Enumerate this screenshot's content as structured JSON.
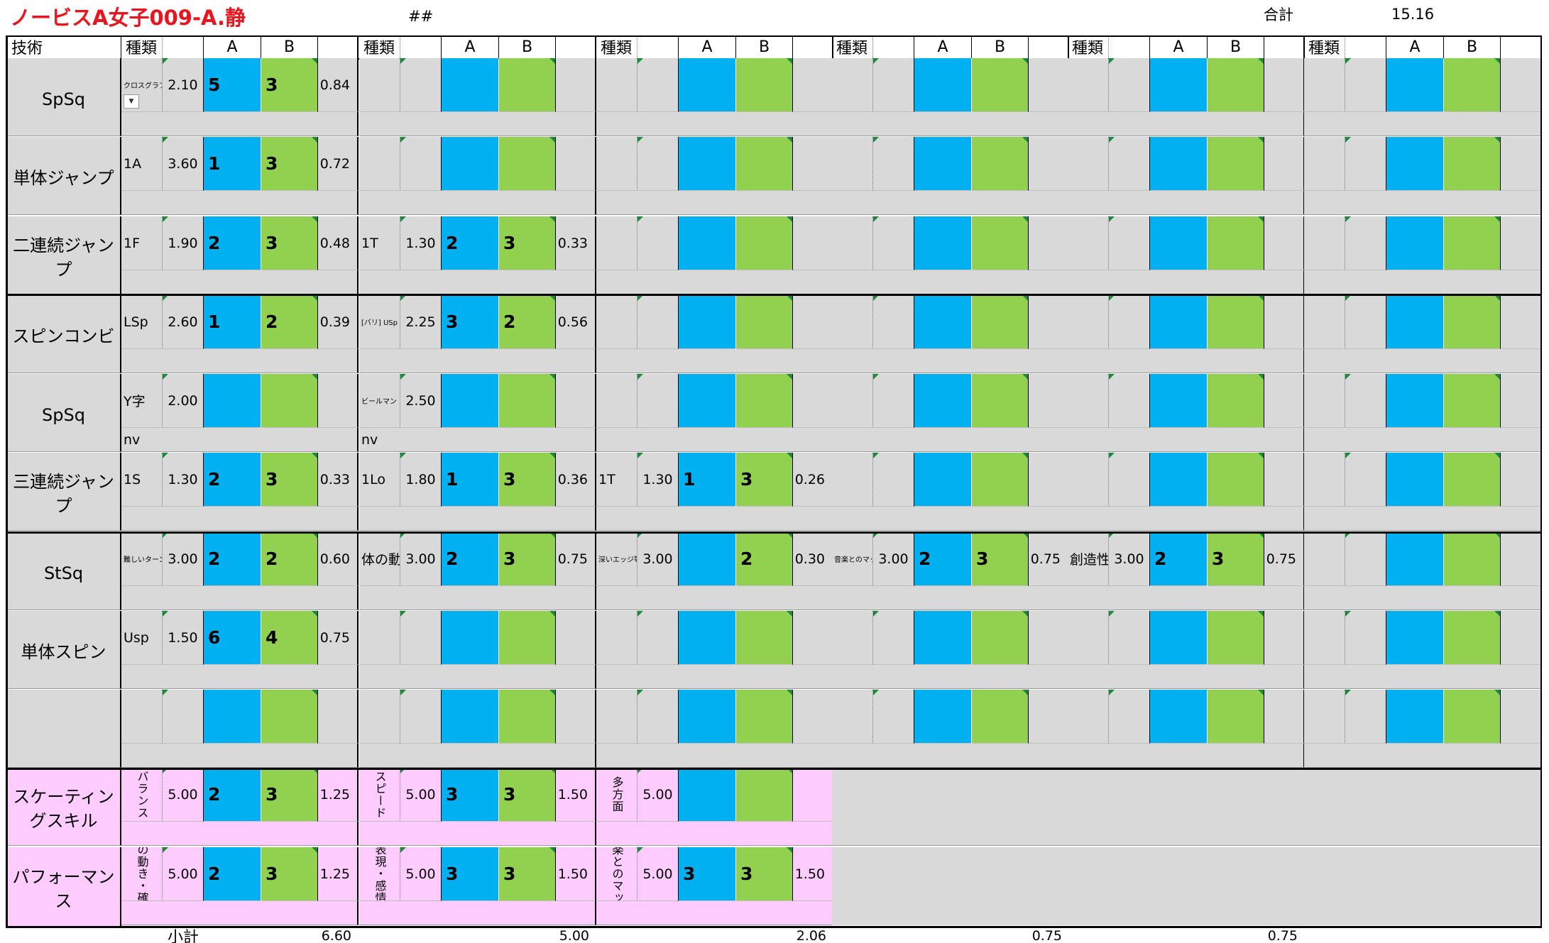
{
  "title": "ノービスA女子009-A.静",
  "top_mark": "##",
  "total_label": "合計",
  "total_value": "15.16",
  "header": {
    "gijutsu": "技術",
    "kind": "種類",
    "a": "A",
    "b": "B"
  },
  "colors": {
    "a_cell": "#00b0f0",
    "b_cell": "#92d050",
    "gray": "#d9d9d9",
    "pink": "#ffccff",
    "title_red": "#e8141e"
  },
  "skills": [
    "SpSq",
    "単体ジャンプ",
    "二連続ジャンプ",
    "スピンコンビ",
    "SpSq",
    "三連続ジャンプ",
    "StSq",
    "単体スピン",
    "",
    "スケーティングスキル",
    "パフォーマンス"
  ],
  "groups": [
    [
      {
        "kind": "クロスグラブ",
        "base": "2.10",
        "a": "5",
        "b": "3",
        "res": "0.84",
        "note": ""
      },
      {
        "kind": "1A",
        "base": "3.60",
        "a": "1",
        "b": "3",
        "res": "0.72",
        "note": ""
      },
      {
        "kind": "1F",
        "base": "1.90",
        "a": "2",
        "b": "3",
        "res": "0.48",
        "note": ""
      },
      {
        "kind": "LSp",
        "base": "2.60",
        "a": "1",
        "b": "2",
        "res": "0.39",
        "note": ""
      },
      {
        "kind": "Y字",
        "base": "2.00",
        "a": "",
        "b": "",
        "res": "",
        "note": "nv"
      },
      {
        "kind": "1S",
        "base": "1.30",
        "a": "2",
        "b": "3",
        "res": "0.33",
        "note": ""
      },
      {
        "kind": "難しいターン",
        "base": "3.00",
        "a": "2",
        "b": "2",
        "res": "0.60",
        "note": ""
      },
      {
        "kind": "Usp",
        "base": "1.50",
        "a": "6",
        "b": "4",
        "res": "0.75",
        "note": ""
      },
      {
        "kind": "",
        "base": "",
        "a": "",
        "b": "",
        "res": "",
        "note": ""
      },
      {
        "kind": "バランス",
        "base": "5.00",
        "a": "2",
        "b": "3",
        "res": "1.25",
        "note": ""
      },
      {
        "kind": "体の動き・確明",
        "base": "5.00",
        "a": "2",
        "b": "3",
        "res": "1.25",
        "note": ""
      }
    ],
    [
      {
        "kind": "",
        "base": "",
        "a": "",
        "b": "",
        "res": "",
        "note": ""
      },
      {
        "kind": "",
        "base": "",
        "a": "",
        "b": "",
        "res": "",
        "note": ""
      },
      {
        "kind": "1T",
        "base": "1.30",
        "a": "2",
        "b": "3",
        "res": "0.33",
        "note": ""
      },
      {
        "kind": "[バリ] USp",
        "base": "2.25",
        "a": "3",
        "b": "2",
        "res": "0.56",
        "note": ""
      },
      {
        "kind": "ビールマン",
        "base": "2.50",
        "a": "",
        "b": "",
        "res": "",
        "note": "nv"
      },
      {
        "kind": "1Lo",
        "base": "1.80",
        "a": "1",
        "b": "3",
        "res": "0.36",
        "note": ""
      },
      {
        "kind": "体の動き",
        "base": "3.00",
        "a": "2",
        "b": "3",
        "res": "0.75",
        "note": ""
      },
      {
        "kind": "",
        "base": "",
        "a": "",
        "b": "",
        "res": "",
        "note": ""
      },
      {
        "kind": "",
        "base": "",
        "a": "",
        "b": "",
        "res": "",
        "note": ""
      },
      {
        "kind": "スピード",
        "base": "5.00",
        "a": "3",
        "b": "3",
        "res": "1.50",
        "note": ""
      },
      {
        "kind": "表現・感情",
        "base": "5.00",
        "a": "3",
        "b": "3",
        "res": "1.50",
        "note": ""
      }
    ],
    [
      {
        "kind": "",
        "base": "",
        "a": "",
        "b": "",
        "res": "",
        "note": ""
      },
      {
        "kind": "",
        "base": "",
        "a": "",
        "b": "",
        "res": "",
        "note": ""
      },
      {
        "kind": "",
        "base": "",
        "a": "",
        "b": "",
        "res": "",
        "note": ""
      },
      {
        "kind": "",
        "base": "",
        "a": "",
        "b": "",
        "res": "",
        "note": ""
      },
      {
        "kind": "",
        "base": "",
        "a": "",
        "b": "",
        "res": "",
        "note": ""
      },
      {
        "kind": "1T",
        "base": "1.30",
        "a": "1",
        "b": "3",
        "res": "0.26",
        "note": ""
      },
      {
        "kind": "深いエッジ等",
        "base": "3.00",
        "a": "",
        "b": "2",
        "res": "0.30",
        "note": ""
      },
      {
        "kind": "",
        "base": "",
        "a": "",
        "b": "",
        "res": "",
        "note": ""
      },
      {
        "kind": "",
        "base": "",
        "a": "",
        "b": "",
        "res": "",
        "note": ""
      },
      {
        "kind": "多方面",
        "base": "5.00",
        "a": "",
        "b": "",
        "res": "",
        "note": ""
      },
      {
        "kind": "音楽とのマッチ",
        "base": "5.00",
        "a": "3",
        "b": "3",
        "res": "1.50",
        "note": ""
      }
    ],
    [
      {
        "kind": "",
        "base": "",
        "a": "",
        "b": "",
        "res": "",
        "note": ""
      },
      {
        "kind": "",
        "base": "",
        "a": "",
        "b": "",
        "res": "",
        "note": ""
      },
      {
        "kind": "",
        "base": "",
        "a": "",
        "b": "",
        "res": "",
        "note": ""
      },
      {
        "kind": "",
        "base": "",
        "a": "",
        "b": "",
        "res": "",
        "note": ""
      },
      {
        "kind": "",
        "base": "",
        "a": "",
        "b": "",
        "res": "",
        "note": ""
      },
      {
        "kind": "",
        "base": "",
        "a": "",
        "b": "",
        "res": "",
        "note": ""
      },
      {
        "kind": "音楽とのマッチ",
        "base": "3.00",
        "a": "2",
        "b": "3",
        "res": "0.75",
        "note": ""
      },
      {
        "kind": "",
        "base": "",
        "a": "",
        "b": "",
        "res": "",
        "note": ""
      },
      {
        "kind": "",
        "base": "",
        "a": "",
        "b": "",
        "res": "",
        "note": ""
      }
    ],
    [
      {
        "kind": "",
        "base": "",
        "a": "",
        "b": "",
        "res": "",
        "note": ""
      },
      {
        "kind": "",
        "base": "",
        "a": "",
        "b": "",
        "res": "",
        "note": ""
      },
      {
        "kind": "",
        "base": "",
        "a": "",
        "b": "",
        "res": "",
        "note": ""
      },
      {
        "kind": "",
        "base": "",
        "a": "",
        "b": "",
        "res": "",
        "note": ""
      },
      {
        "kind": "",
        "base": "",
        "a": "",
        "b": "",
        "res": "",
        "note": ""
      },
      {
        "kind": "",
        "base": "",
        "a": "",
        "b": "",
        "res": "",
        "note": ""
      },
      {
        "kind": "創造性等",
        "base": "3.00",
        "a": "2",
        "b": "3",
        "res": "0.75",
        "note": ""
      },
      {
        "kind": "",
        "base": "",
        "a": "",
        "b": "",
        "res": "",
        "note": ""
      },
      {
        "kind": "",
        "base": "",
        "a": "",
        "b": "",
        "res": "",
        "note": ""
      }
    ],
    [
      {
        "kind": "",
        "base": "",
        "a": "",
        "b": "",
        "res": "",
        "note": ""
      },
      {
        "kind": "",
        "base": "",
        "a": "",
        "b": "",
        "res": "",
        "note": ""
      },
      {
        "kind": "",
        "base": "",
        "a": "",
        "b": "",
        "res": "",
        "note": ""
      },
      {
        "kind": "",
        "base": "",
        "a": "",
        "b": "",
        "res": "",
        "note": ""
      },
      {
        "kind": "",
        "base": "",
        "a": "",
        "b": "",
        "res": "",
        "note": ""
      },
      {
        "kind": "",
        "base": "",
        "a": "",
        "b": "",
        "res": "",
        "note": ""
      },
      {
        "kind": "",
        "base": "",
        "a": "",
        "b": "",
        "res": "",
        "note": ""
      },
      {
        "kind": "",
        "base": "",
        "a": "",
        "b": "",
        "res": "",
        "note": ""
      },
      {
        "kind": "",
        "base": "",
        "a": "",
        "b": "",
        "res": "",
        "note": ""
      }
    ]
  ],
  "subtotal_label": "小計",
  "subtotals": [
    "6.60",
    "5.00",
    "2.06",
    "0.75",
    "0.75",
    ""
  ]
}
